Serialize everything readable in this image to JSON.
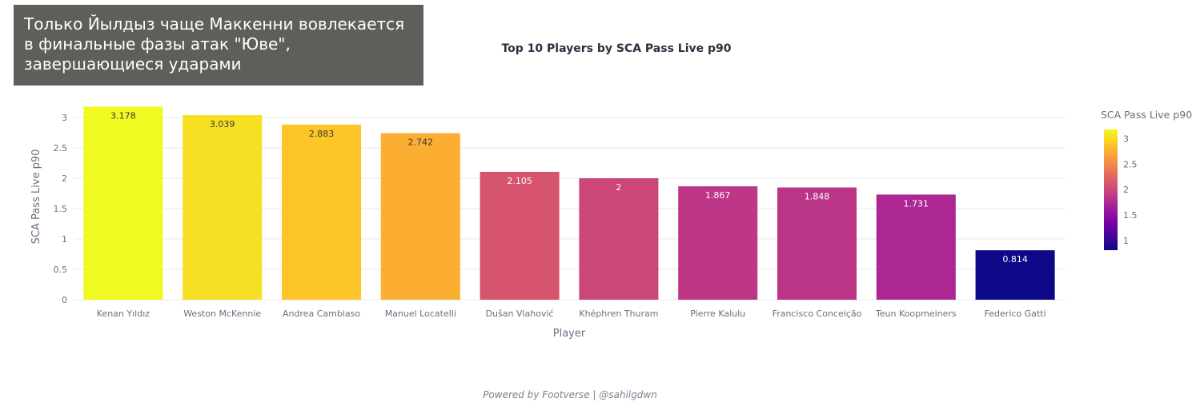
{
  "banner": {
    "text": "Только Йылдыз чаще Маккенни вовлекается\nв финальные фазы атак \"Юве\",\nзавершающиеся ударами"
  },
  "chart_data": {
    "type": "bar",
    "title": "Top 10 Players by SCA Pass Live p90",
    "xlabel": "Player",
    "ylabel": "SCA Pass Live p90",
    "categories": [
      "Kenan Yıldız",
      "Weston McKennie",
      "Andrea Cambiaso",
      "Manuel Locatelli",
      "Dušan Vlahović",
      "Khéphren Thuram",
      "Pierre Kalulu",
      "Francisco Conceição",
      "Teun Koopmeiners",
      "Federico Gatti"
    ],
    "values": [
      3.178,
      3.039,
      2.883,
      2.742,
      2.105,
      2,
      1.867,
      1.848,
      1.731,
      0.814
    ],
    "value_labels": [
      "3.178",
      "3.039",
      "2.883",
      "2.742",
      "2.105",
      "2",
      "1.867",
      "1.848",
      "1.731",
      "0.814"
    ],
    "ylim": [
      0,
      3.25
    ],
    "yticks": [
      0,
      0.5,
      1,
      1.5,
      2,
      2.5,
      3
    ],
    "ytick_labels": [
      "0",
      "0.5",
      "1",
      "1.5",
      "2",
      "2.5",
      "3"
    ],
    "grid": true,
    "colorscale": "plasma",
    "colorbar": {
      "title": "SCA Pass Live p90",
      "range": [
        0.814,
        3.178
      ],
      "ticks": [
        1,
        1.5,
        2,
        2.5,
        3
      ],
      "tick_labels": [
        "1",
        "1.5",
        "2",
        "2.5",
        "3"
      ]
    },
    "colors": {
      "axis_text": "#6b6f80",
      "grid": "#e6e8ec",
      "title": "#2a3140",
      "label_dark": "#3a3a3a",
      "label_light": "#ffffff"
    }
  },
  "footer": {
    "text": "Powered by Footverse | @sahilgdwn"
  }
}
